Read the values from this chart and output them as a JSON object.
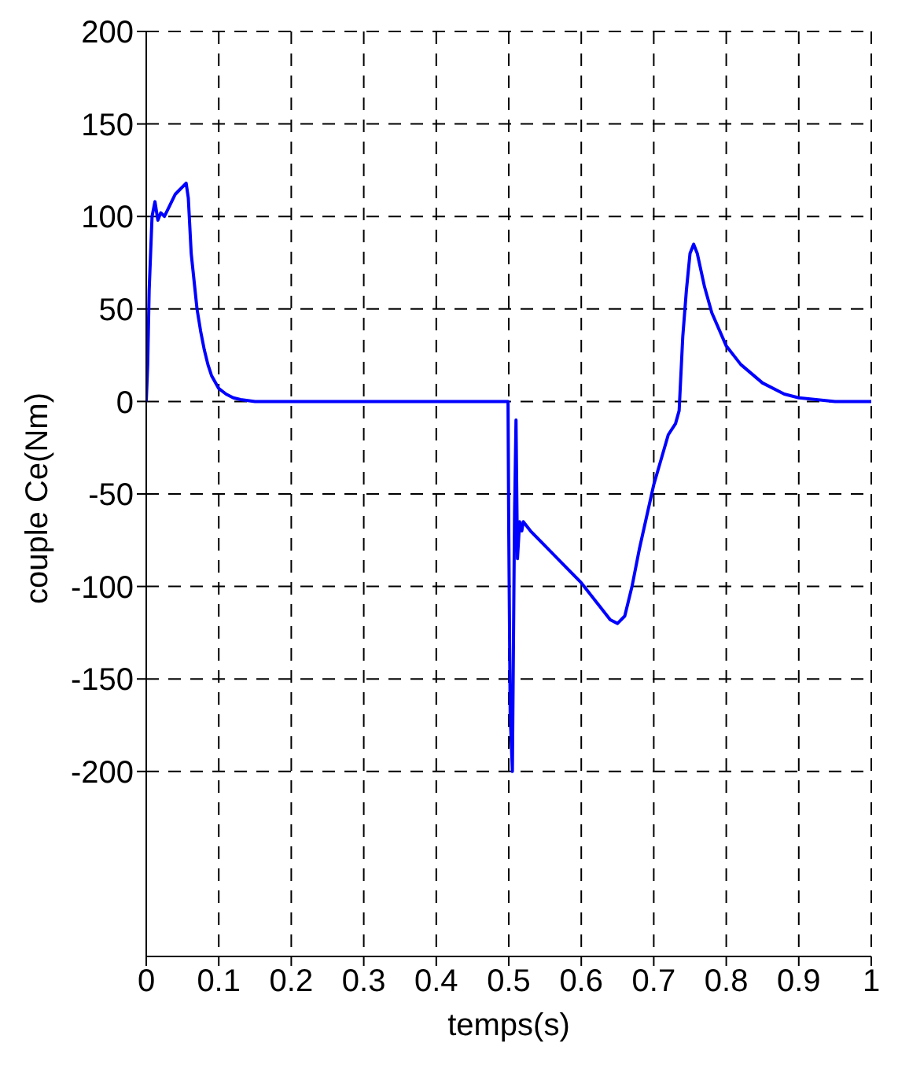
{
  "chart_data": {
    "type": "line",
    "xlabel": "temps(s)",
    "ylabel": "couple Ce(Nm)",
    "x": [
      0,
      0.002,
      0.004,
      0.008,
      0.012,
      0.016,
      0.02,
      0.025,
      0.03,
      0.035,
      0.04,
      0.045,
      0.05,
      0.055,
      0.058,
      0.062,
      0.066,
      0.07,
      0.075,
      0.08,
      0.085,
      0.09,
      0.1,
      0.11,
      0.12,
      0.13,
      0.15,
      0.2,
      0.3,
      0.4,
      0.499,
      0.5,
      0.502,
      0.505,
      0.508,
      0.51,
      0.512,
      0.515,
      0.518,
      0.52,
      0.53,
      0.55,
      0.58,
      0.6,
      0.62,
      0.64,
      0.65,
      0.66,
      0.67,
      0.68,
      0.7,
      0.72,
      0.73,
      0.735,
      0.74,
      0.745,
      0.75,
      0.755,
      0.76,
      0.77,
      0.78,
      0.8,
      0.82,
      0.85,
      0.88,
      0.9,
      0.95,
      1
    ],
    "series": [
      {
        "color": "#0000ff",
        "values": [
          0,
          20,
          60,
          100,
          108,
          98,
          102,
          100,
          104,
          108,
          112,
          114,
          116,
          118,
          110,
          80,
          65,
          50,
          38,
          28,
          20,
          14,
          7,
          4,
          2,
          1,
          0,
          0,
          0,
          0,
          0,
          -70,
          -170,
          -200,
          -60,
          -10,
          -85,
          -65,
          -70,
          -65,
          -70,
          -78,
          -90,
          -98,
          -108,
          -118,
          -120,
          -116,
          -100,
          -80,
          -45,
          -18,
          -12,
          -5,
          35,
          60,
          80,
          85,
          80,
          62,
          48,
          30,
          20,
          10,
          4,
          2,
          0,
          0
        ]
      }
    ],
    "xlim": [
      0,
      1
    ],
    "xticks": [
      0,
      0.1,
      0.2,
      0.3,
      0.4,
      0.5,
      0.6,
      0.7,
      0.8,
      0.9,
      1
    ],
    "ylim": [
      -300,
      200
    ],
    "yticks": [
      -200,
      -150,
      -100,
      -50,
      0,
      50,
      100,
      150,
      200
    ],
    "grid": true,
    "line_style": "solid",
    "marker": "none"
  }
}
